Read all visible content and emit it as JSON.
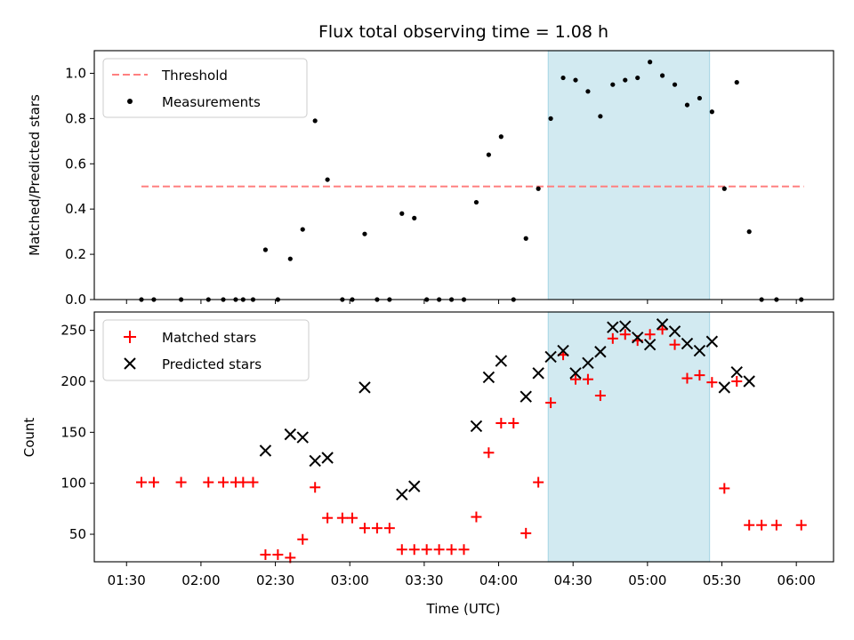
{
  "chart_data": {
    "title": "Flux total observing time = 1.08 h",
    "xlabel": "Time (UTC)",
    "x_tick_labels": [
      "01:30",
      "02:00",
      "02:30",
      "03:00",
      "03:30",
      "04:00",
      "04:30",
      "05:00",
      "05:30",
      "06:00"
    ],
    "x_ticks": [
      "01:30",
      "02:00",
      "02:30",
      "03:00",
      "03:30",
      "04:00",
      "04:30",
      "05:00",
      "05:30",
      "06:00"
    ],
    "xlim": [
      "01:17",
      "06:15"
    ],
    "shaded_span": {
      "start": "04:20",
      "end": "05:25",
      "color": "#add8e6"
    },
    "panels": [
      {
        "type": "scatter",
        "ylabel": "Matched/Predicted stars",
        "ylim": [
          0,
          1.1
        ],
        "y_ticks": [
          0.0,
          0.2,
          0.4,
          0.6,
          0.8,
          1.0
        ],
        "y_tick_labels": [
          "0.0",
          "0.2",
          "0.4",
          "0.6",
          "0.8",
          "1.0"
        ],
        "legend": {
          "location": "upper-left"
        },
        "threshold": {
          "name": "Threshold",
          "value": 0.5,
          "x_start": "01:36",
          "x_end": "06:03",
          "color": "#ff8080",
          "style": "dashed"
        },
        "series": [
          {
            "name": "Measurements",
            "marker": "dot",
            "color": "#000000",
            "points": [
              [
                "01:36",
                0
              ],
              [
                "01:41",
                0
              ],
              [
                "01:52",
                0
              ],
              [
                "02:03",
                0
              ],
              [
                "02:09",
                0
              ],
              [
                "02:14",
                0
              ],
              [
                "02:17",
                0
              ],
              [
                "02:21",
                0
              ],
              [
                "02:26",
                0.22
              ],
              [
                "02:31",
                0
              ],
              [
                "02:36",
                0.18
              ],
              [
                "02:41",
                0.31
              ],
              [
                "02:46",
                0.79
              ],
              [
                "02:51",
                0.53
              ],
              [
                "02:57",
                0
              ],
              [
                "03:01",
                0
              ],
              [
                "03:06",
                0.29
              ],
              [
                "03:11",
                0
              ],
              [
                "03:16",
                0
              ],
              [
                "03:21",
                0.38
              ],
              [
                "03:26",
                0.36
              ],
              [
                "03:31",
                0
              ],
              [
                "03:36",
                0
              ],
              [
                "03:41",
                0
              ],
              [
                "03:46",
                0
              ],
              [
                "03:51",
                0.43
              ],
              [
                "03:56",
                0.64
              ],
              [
                "04:01",
                0.72
              ],
              [
                "04:06",
                0
              ],
              [
                "04:11",
                0.27
              ],
              [
                "04:16",
                0.49
              ],
              [
                "04:21",
                0.8
              ],
              [
                "04:26",
                0.98
              ],
              [
                "04:31",
                0.97
              ],
              [
                "04:36",
                0.92
              ],
              [
                "04:41",
                0.81
              ],
              [
                "04:46",
                0.95
              ],
              [
                "04:51",
                0.97
              ],
              [
                "04:56",
                0.98
              ],
              [
                "05:01",
                1.05
              ],
              [
                "05:06",
                0.99
              ],
              [
                "05:11",
                0.95
              ],
              [
                "05:16",
                0.86
              ],
              [
                "05:21",
                0.89
              ],
              [
                "05:26",
                0.83
              ],
              [
                "05:31",
                0.49
              ],
              [
                "05:36",
                0.96
              ],
              [
                "05:41",
                0.3
              ],
              [
                "05:46",
                0
              ],
              [
                "05:52",
                0
              ],
              [
                "06:02",
                0
              ]
            ]
          }
        ]
      },
      {
        "type": "scatter",
        "ylabel": "Count",
        "ylim": [
          23,
          268
        ],
        "y_ticks": [
          50,
          100,
          150,
          200,
          250
        ],
        "y_tick_labels": [
          "50",
          "100",
          "150",
          "200",
          "250"
        ],
        "legend": {
          "location": "upper-left"
        },
        "series": [
          {
            "name": "Matched stars",
            "marker": "plus",
            "color": "#ff0000",
            "points": [
              [
                "01:36",
                101
              ],
              [
                "01:41",
                101
              ],
              [
                "01:52",
                101
              ],
              [
                "02:03",
                101
              ],
              [
                "02:09",
                101
              ],
              [
                "02:14",
                101
              ],
              [
                "02:17",
                101
              ],
              [
                "02:21",
                101
              ],
              [
                "02:26",
                30
              ],
              [
                "02:31",
                30
              ],
              [
                "02:36",
                27
              ],
              [
                "02:41",
                45
              ],
              [
                "02:46",
                96
              ],
              [
                "02:51",
                66
              ],
              [
                "02:57",
                66
              ],
              [
                "03:01",
                66
              ],
              [
                "03:06",
                56
              ],
              [
                "03:11",
                56
              ],
              [
                "03:16",
                56
              ],
              [
                "03:21",
                35
              ],
              [
                "03:26",
                35
              ],
              [
                "03:31",
                35
              ],
              [
                "03:36",
                35
              ],
              [
                "03:41",
                35
              ],
              [
                "03:46",
                35
              ],
              [
                "03:51",
                67
              ],
              [
                "03:56",
                130
              ],
              [
                "04:01",
                159
              ],
              [
                "04:06",
                159
              ],
              [
                "04:11",
                51
              ],
              [
                "04:16",
                101
              ],
              [
                "04:21",
                179
              ],
              [
                "04:26",
                226
              ],
              [
                "04:31",
                202
              ],
              [
                "04:36",
                202
              ],
              [
                "04:41",
                186
              ],
              [
                "04:46",
                242
              ],
              [
                "04:51",
                246
              ],
              [
                "04:56",
                240
              ],
              [
                "05:01",
                246
              ],
              [
                "05:06",
                251
              ],
              [
                "05:11",
                236
              ],
              [
                "05:16",
                203
              ],
              [
                "05:21",
                206
              ],
              [
                "05:26",
                199
              ],
              [
                "05:31",
                95
              ],
              [
                "05:36",
                200
              ],
              [
                "05:41",
                59
              ],
              [
                "05:46",
                59
              ],
              [
                "05:52",
                59
              ],
              [
                "06:02",
                59
              ]
            ]
          },
          {
            "name": "Predicted stars",
            "marker": "x",
            "color": "#000000",
            "points": [
              [
                "02:26",
                132
              ],
              [
                "02:36",
                148
              ],
              [
                "02:41",
                145
              ],
              [
                "02:46",
                122
              ],
              [
                "02:51",
                125
              ],
              [
                "03:06",
                194
              ],
              [
                "03:21",
                89
              ],
              [
                "03:26",
                97
              ],
              [
                "03:51",
                156
              ],
              [
                "03:56",
                204
              ],
              [
                "04:01",
                220
              ],
              [
                "04:11",
                185
              ],
              [
                "04:16",
                208
              ],
              [
                "04:21",
                224
              ],
              [
                "04:26",
                230
              ],
              [
                "04:31",
                208
              ],
              [
                "04:36",
                218
              ],
              [
                "04:41",
                229
              ],
              [
                "04:46",
                253
              ],
              [
                "04:51",
                254
              ],
              [
                "04:56",
                243
              ],
              [
                "05:01",
                236
              ],
              [
                "05:06",
                256
              ],
              [
                "05:11",
                249
              ],
              [
                "05:16",
                237
              ],
              [
                "05:21",
                230
              ],
              [
                "05:26",
                239
              ],
              [
                "05:31",
                194
              ],
              [
                "05:36",
                209
              ],
              [
                "05:41",
                200
              ]
            ]
          }
        ]
      }
    ]
  }
}
